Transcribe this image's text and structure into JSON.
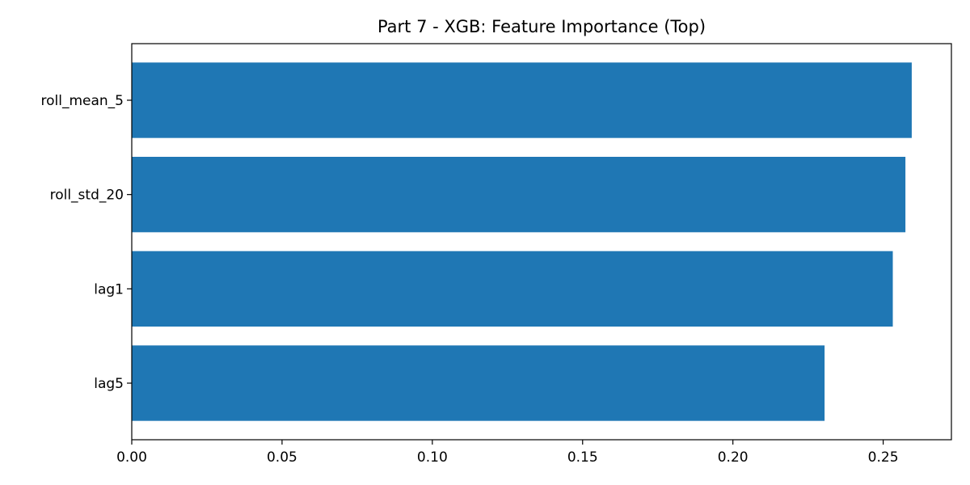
{
  "chart_data": {
    "type": "bar",
    "orientation": "horizontal",
    "title": "Part 7 - XGB: Feature Importance (Top)",
    "xlabel": "",
    "ylabel": "",
    "categories": [
      "roll_mean_5",
      "roll_std_20",
      "lag1",
      "lag5"
    ],
    "values": [
      0.2595,
      0.2574,
      0.2532,
      0.2305
    ],
    "xlim": [
      0,
      0.2727
    ],
    "xticks": [
      0.0,
      0.05,
      0.1,
      0.15,
      0.2,
      0.25
    ],
    "xtick_labels": [
      "0.00",
      "0.05",
      "0.10",
      "0.15",
      "0.20",
      "0.25"
    ],
    "bar_color": "#1f77b4",
    "grid": false,
    "legend": "none"
  }
}
